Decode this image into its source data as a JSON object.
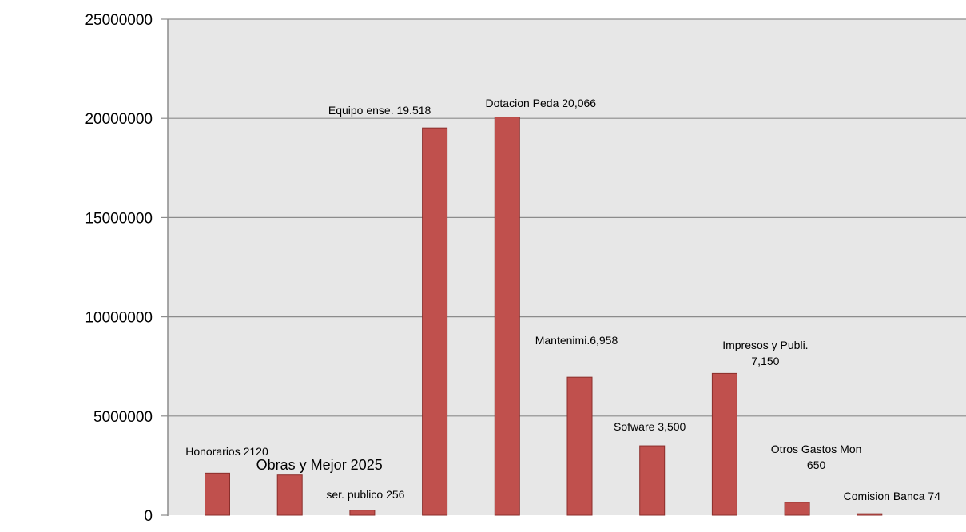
{
  "chart_data": {
    "type": "bar",
    "categories": [
      "",
      "",
      "",
      "",
      "",
      "",
      "",
      "",
      "",
      ""
    ],
    "values": [
      2120000,
      2025000,
      256000,
      19518000,
      20066000,
      6958000,
      3500000,
      7150000,
      650000,
      74000
    ],
    "data_labels": [
      [
        "Honorarios  2120"
      ],
      [
        "Obras y Mejor  2025"
      ],
      [
        "ser. publico  256"
      ],
      [
        "Equipo ense. 19.518"
      ],
      [
        "Dotacion Peda 20,066"
      ],
      [
        "Mantenimi.6,958"
      ],
      [
        "Sofware 3,500"
      ],
      [
        "Impresos y Publi.",
        "7,150"
      ],
      [
        "Otros Gastos Mon",
        "650"
      ],
      [
        "Comision Banca 74"
      ]
    ],
    "yticks": [
      "0",
      "5000000",
      "10000000",
      "15000000",
      "20000000",
      "25000000"
    ],
    "ylim": [
      0,
      25000000
    ],
    "title": "",
    "xlabel": "",
    "ylabel": "",
    "grid": true,
    "colors": {
      "bar_fill": "#C0504D",
      "bar_stroke": "#8B2E2B",
      "plot_background": "#E7E7E7",
      "gridline": "#8C8C8C",
      "axis": "#8C8C8C"
    }
  }
}
